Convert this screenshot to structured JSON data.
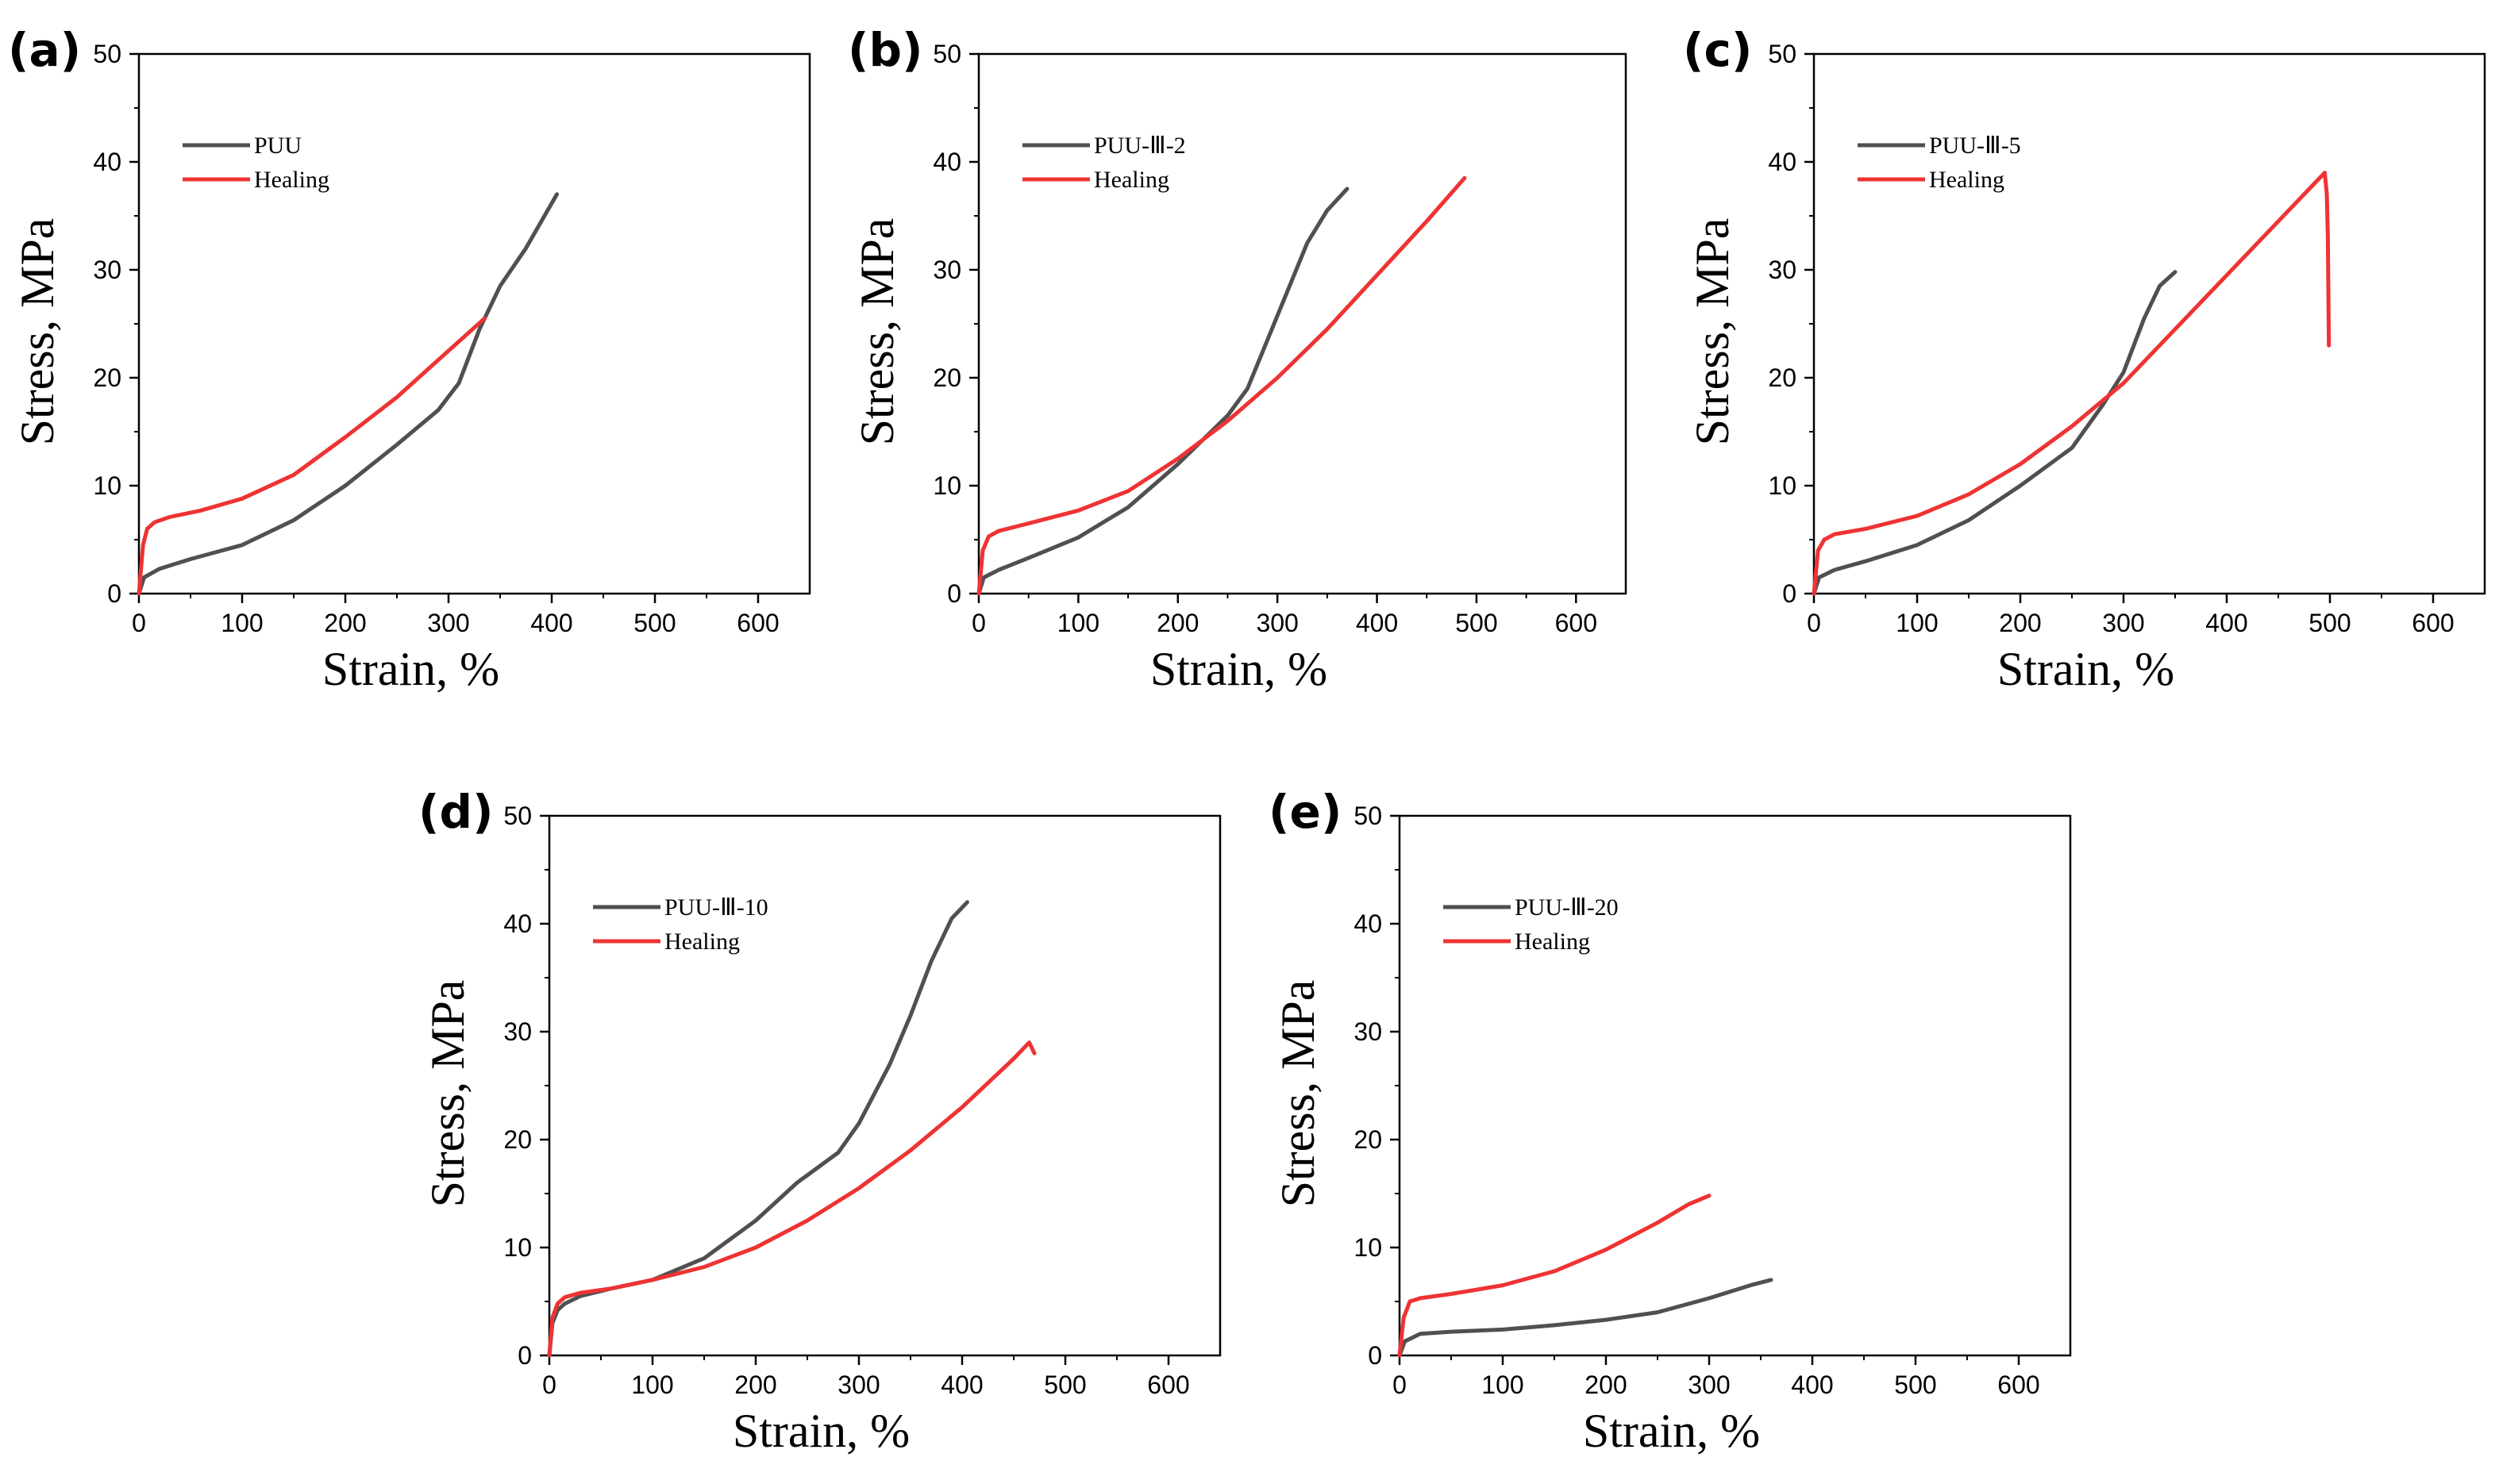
{
  "chart_data": [
    {
      "type": "line",
      "panel_label": "(a)",
      "xlabel": "Strain, %",
      "ylabel": "Stress, MPa",
      "xlim": [
        0,
        650
      ],
      "ylim": [
        0,
        50
      ],
      "xticks": [
        "0",
        "100",
        "200",
        "300",
        "400",
        "500",
        "600"
      ],
      "yticks": [
        "0",
        "10",
        "20",
        "30",
        "40",
        "50"
      ],
      "legend_position": "top-left",
      "grid": false,
      "series": [
        {
          "name": "PUU",
          "color": "#505050",
          "x": [
            0,
            5,
            20,
            50,
            100,
            150,
            200,
            250,
            290,
            310,
            330,
            350,
            375,
            405
          ],
          "y": [
            0,
            1.5,
            2.3,
            3.2,
            4.5,
            6.8,
            10,
            13.8,
            17,
            19.5,
            24.5,
            28.5,
            32,
            37
          ]
        },
        {
          "name": "Healing",
          "color": "#ee3333",
          "x": [
            0,
            4,
            8,
            15,
            30,
            60,
            100,
            150,
            200,
            250,
            300,
            335
          ],
          "y": [
            0,
            4.5,
            6,
            6.6,
            7.1,
            7.7,
            8.8,
            11,
            14.5,
            18.2,
            22.5,
            25.5
          ]
        }
      ]
    },
    {
      "type": "line",
      "panel_label": "(b)",
      "xlabel": "Strain, %",
      "ylabel": "Stress, MPa",
      "xlim": [
        0,
        650
      ],
      "ylim": [
        0,
        50
      ],
      "xticks": [
        "0",
        "100",
        "200",
        "300",
        "400",
        "500",
        "600"
      ],
      "yticks": [
        "0",
        "10",
        "20",
        "30",
        "40",
        "50"
      ],
      "legend_position": "top-left",
      "grid": false,
      "series": [
        {
          "name": "PUU-Ⅲ-2",
          "color": "#505050",
          "x": [
            0,
            5,
            20,
            50,
            100,
            150,
            200,
            250,
            270,
            290,
            310,
            330,
            350,
            370
          ],
          "y": [
            0,
            1.5,
            2.2,
            3.3,
            5.2,
            8,
            12,
            16.5,
            19,
            23.5,
            28,
            32.5,
            35.5,
            37.5
          ]
        },
        {
          "name": "Healing",
          "color": "#ee3333",
          "x": [
            0,
            4,
            10,
            20,
            50,
            100,
            150,
            200,
            250,
            300,
            350,
            400,
            450,
            488
          ],
          "y": [
            0,
            4,
            5.3,
            5.8,
            6.5,
            7.7,
            9.5,
            12.5,
            16,
            20,
            24.5,
            29.5,
            34.5,
            38.5
          ]
        }
      ]
    },
    {
      "type": "line",
      "panel_label": "(c)",
      "xlabel": "Strain, %",
      "ylabel": "Stress, MPa",
      "xlim": [
        0,
        650
      ],
      "ylim": [
        0,
        50
      ],
      "xticks": [
        "0",
        "100",
        "200",
        "300",
        "400",
        "500",
        "600"
      ],
      "yticks": [
        "0",
        "10",
        "20",
        "30",
        "40",
        "50"
      ],
      "legend_position": "top-left",
      "grid": false,
      "series": [
        {
          "name": "PUU-Ⅲ-5",
          "color": "#505050",
          "x": [
            0,
            5,
            20,
            50,
            100,
            150,
            200,
            250,
            280,
            300,
            320,
            335,
            350
          ],
          "y": [
            0,
            1.5,
            2.2,
            3,
            4.5,
            6.8,
            10,
            13.5,
            17.5,
            20.5,
            25.5,
            28.5,
            29.8
          ]
        },
        {
          "name": "Healing",
          "color": "#ee3333",
          "x": [
            0,
            4,
            10,
            20,
            50,
            100,
            150,
            200,
            250,
            300,
            350,
            400,
            450,
            480,
            490,
            495,
            497,
            498,
            499
          ],
          "y": [
            0,
            4,
            5,
            5.5,
            6,
            7.2,
            9.2,
            12,
            15.5,
            19.5,
            24.5,
            29.5,
            34.5,
            37.5,
            38.5,
            39,
            37,
            33,
            23
          ]
        }
      ]
    },
    {
      "type": "line",
      "panel_label": "(d)",
      "xlabel": "Strain, %",
      "ylabel": "Stress, MPa",
      "xlim": [
        0,
        650
      ],
      "ylim": [
        0,
        50
      ],
      "xticks": [
        "0",
        "100",
        "200",
        "300",
        "400",
        "500",
        "600"
      ],
      "yticks": [
        "0",
        "10",
        "20",
        "30",
        "40",
        "50"
      ],
      "legend_position": "top-left",
      "grid": false,
      "series": [
        {
          "name": "PUU-Ⅲ-10",
          "color": "#505050",
          "x": [
            0,
            3,
            8,
            15,
            30,
            60,
            100,
            150,
            200,
            240,
            280,
            300,
            330,
            350,
            370,
            390,
            405
          ],
          "y": [
            0,
            3,
            4.2,
            4.8,
            5.5,
            6.2,
            7,
            9,
            12.5,
            16,
            18.8,
            21.5,
            27,
            31.5,
            36.5,
            40.5,
            42
          ]
        },
        {
          "name": "Healing",
          "color": "#ee3333",
          "x": [
            0,
            3,
            8,
            15,
            30,
            60,
            100,
            150,
            200,
            250,
            300,
            350,
            400,
            450,
            465,
            470
          ],
          "y": [
            0,
            3.5,
            4.8,
            5.4,
            5.8,
            6.2,
            7,
            8.2,
            10,
            12.5,
            15.5,
            19,
            23,
            27.5,
            29,
            28
          ]
        }
      ]
    },
    {
      "type": "line",
      "panel_label": "(e)",
      "xlabel": "Strain, %",
      "ylabel": "Stress, MPa",
      "xlim": [
        0,
        650
      ],
      "ylim": [
        0,
        50
      ],
      "xticks": [
        "0",
        "100",
        "200",
        "300",
        "400",
        "500",
        "600"
      ],
      "yticks": [
        "0",
        "10",
        "20",
        "30",
        "40",
        "50"
      ],
      "legend_position": "top-left",
      "grid": false,
      "series": [
        {
          "name": "PUU-Ⅲ-20",
          "color": "#505050",
          "x": [
            0,
            5,
            20,
            50,
            100,
            150,
            200,
            250,
            300,
            340,
            360
          ],
          "y": [
            0,
            1.3,
            2,
            2.2,
            2.4,
            2.8,
            3.3,
            4,
            5.3,
            6.5,
            7
          ]
        },
        {
          "name": "Healing",
          "color": "#ee3333",
          "x": [
            0,
            4,
            10,
            20,
            50,
            100,
            150,
            200,
            250,
            280,
            300
          ],
          "y": [
            0,
            3.5,
            5,
            5.3,
            5.7,
            6.5,
            7.8,
            9.8,
            12.3,
            14,
            14.8
          ]
        }
      ]
    }
  ]
}
